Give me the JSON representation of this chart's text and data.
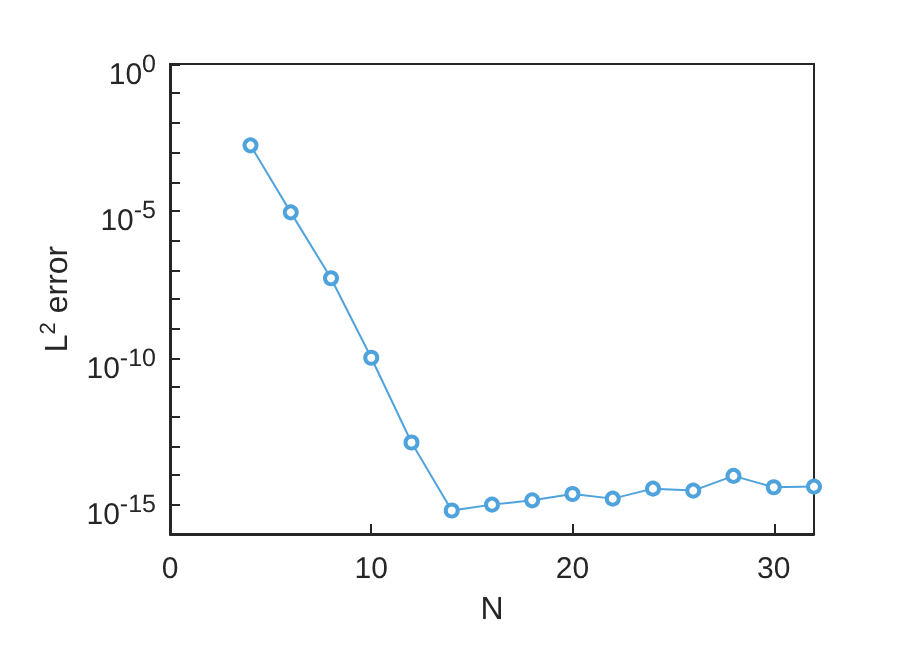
{
  "chart_data": {
    "type": "line",
    "xlabel": "N",
    "ylabel": "L$^{2}$ error",
    "log": "y",
    "grid": false,
    "marker": "circle",
    "line_style": "solid",
    "x": [
      4,
      6,
      8,
      10,
      12,
      14,
      16,
      18,
      20,
      22,
      24,
      26,
      28,
      30,
      32
    ],
    "series": [
      {
        "color": "#4fa3dc",
        "values": [
          0.0017,
          8.9e-06,
          5.1e-08,
          1e-10,
          1.3e-13,
          6.3e-16,
          1e-15,
          1.4e-15,
          2.3e-15,
          1.6e-15,
          3.5e-15,
          3e-15,
          9.5e-15,
          3.9e-15,
          4.1e-15
        ]
      }
    ],
    "xlim": [
      0,
      32
    ],
    "xticks": [
      0,
      10,
      20,
      30
    ],
    "ylim": [
      1e-16,
      1
    ],
    "yticks": [
      {
        "value": 1e-16,
        "label": null
      },
      {
        "value": 1e-15,
        "label": "10$^{-15}$"
      },
      {
        "value": 1e-14,
        "label": null
      },
      {
        "value": 1e-13,
        "label": null
      },
      {
        "value": 1e-12,
        "label": null
      },
      {
        "value": 1e-11,
        "label": null
      },
      {
        "value": 1e-10,
        "label": "10$^{-10}$"
      },
      {
        "value": 1e-09,
        "label": null
      },
      {
        "value": 1e-08,
        "label": null
      },
      {
        "value": 1e-07,
        "label": null
      },
      {
        "value": 1e-06,
        "label": null
      },
      {
        "value": 1e-05,
        "label": "10$^{-5}$"
      },
      {
        "value": 0.0001,
        "label": null
      },
      {
        "value": 0.001,
        "label": null
      },
      {
        "value": 0.01,
        "label": null
      },
      {
        "value": 0.1,
        "label": null
      },
      {
        "value": 1,
        "label": "10$^{0}$"
      }
    ]
  }
}
